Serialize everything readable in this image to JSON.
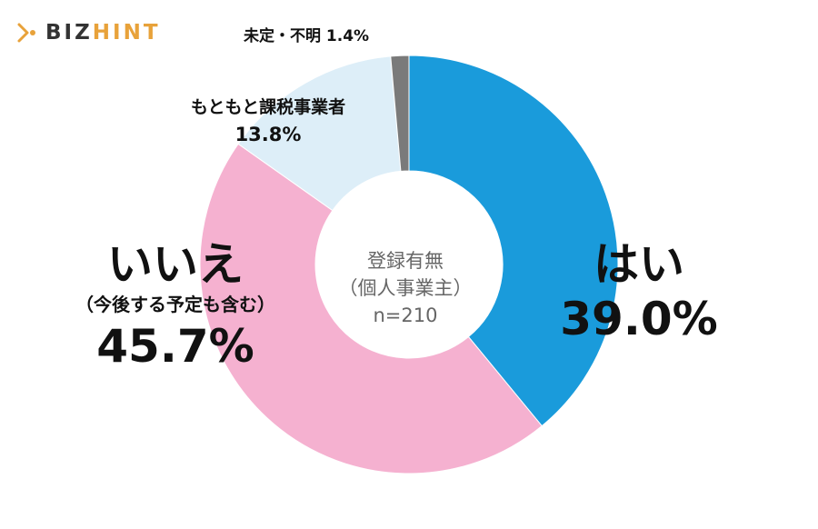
{
  "logo": {
    "prefix": "BIZ",
    "accent": "HINT",
    "accent_color": "#e8a23a"
  },
  "chart_data": {
    "type": "pie",
    "donut": true,
    "center_label": {
      "line1": "登録有無",
      "line2": "（個人事業主）",
      "line3": "n=210"
    },
    "slices": [
      {
        "label": "はい",
        "value": 39.0,
        "display": "39.0%",
        "color": "#1a9bdb"
      },
      {
        "label": "いいえ",
        "sublabel": "（今後する予定も含む）",
        "value": 45.7,
        "display": "45.7%",
        "color": "#f5b1d0"
      },
      {
        "label": "もともと課税事業者",
        "value": 13.8,
        "display": "13.8%",
        "color": "#ddeef8"
      },
      {
        "label": "未定・不明",
        "value": 1.4,
        "display": "1.4%",
        "color": "#7a7a7a"
      }
    ]
  }
}
